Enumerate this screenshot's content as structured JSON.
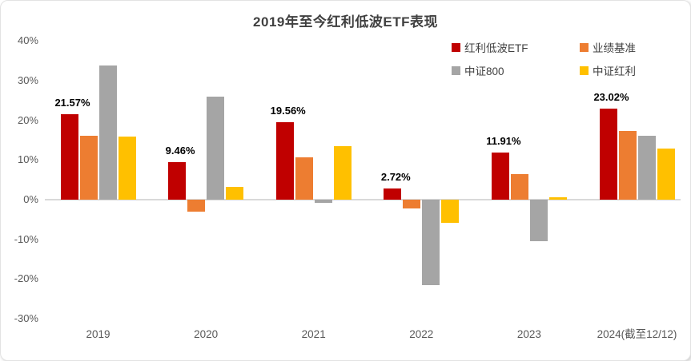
{
  "chart_data": {
    "type": "bar",
    "title": "2019年至今红利低波ETF表现",
    "categories": [
      "2019",
      "2020",
      "2021",
      "2022",
      "2023",
      "2024(截至12/12)"
    ],
    "series": [
      {
        "name": "红利低波ETF",
        "color": "#C00000",
        "values": [
          21.57,
          9.46,
          19.56,
          2.72,
          11.91,
          23.02
        ],
        "data_labels": [
          "21.57%",
          "9.46%",
          "19.56%",
          "2.72%",
          "11.91%",
          "23.02%"
        ]
      },
      {
        "name": "业绩基准",
        "color": "#ED7D31",
        "values": [
          16.1,
          -3.0,
          10.6,
          -2.2,
          6.4,
          17.3
        ]
      },
      {
        "name": "中证800",
        "color": "#A5A5A5",
        "values": [
          33.9,
          25.9,
          -0.8,
          -21.5,
          -10.5,
          16.1
        ]
      },
      {
        "name": "中证红利",
        "color": "#FFC000",
        "values": [
          15.9,
          3.2,
          13.4,
          -5.8,
          0.7,
          12.9
        ]
      }
    ],
    "y_axis": {
      "tick_labels": [
        "40%",
        "30%",
        "20%",
        "10%",
        "0%",
        "-10%",
        "-20%",
        "-30%"
      ],
      "tick_values": [
        40,
        30,
        20,
        10,
        0,
        -10,
        -20,
        -30
      ],
      "ylim": [
        -30,
        40
      ]
    },
    "legend_position": "top-right",
    "grid": "zero-line-only",
    "zero_line_color": "#D9D9D9"
  }
}
